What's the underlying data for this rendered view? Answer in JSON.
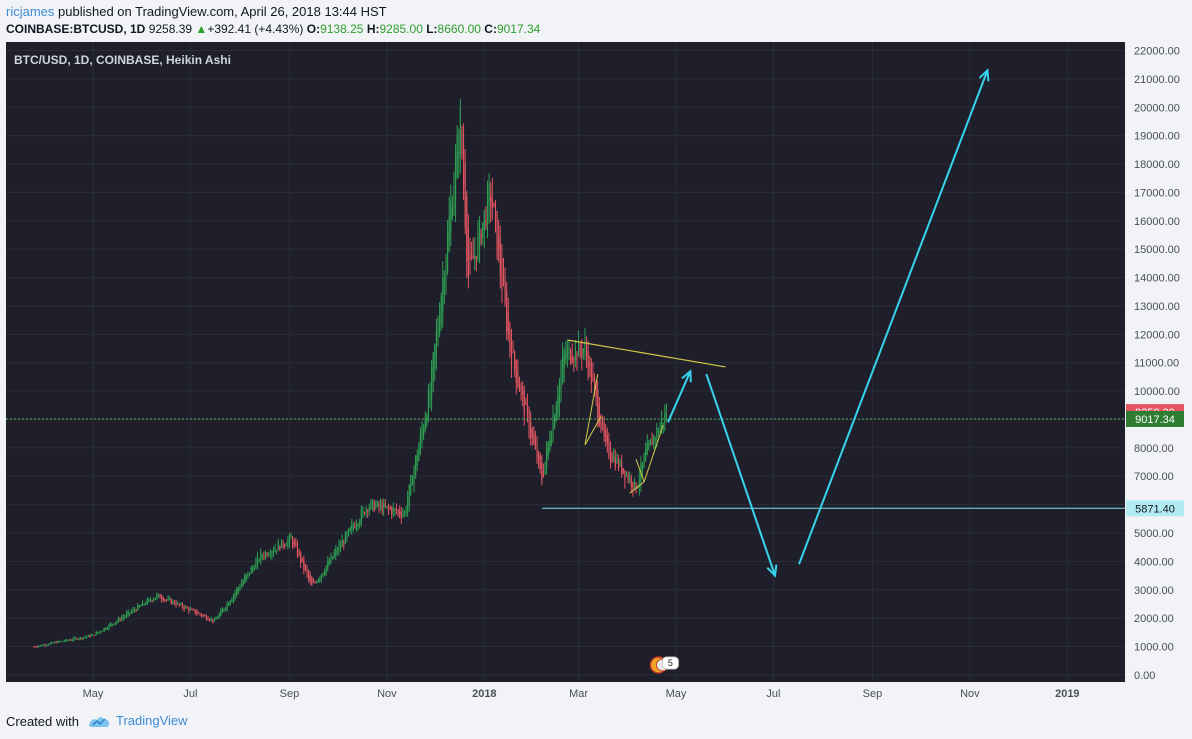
{
  "header": {
    "author": "ricjames",
    "published_text": "published on TradingView.com, April 26, 2018 13:44 HST",
    "symbol": "COINBASE:BTCUSD, 1D",
    "last": "9258.39",
    "change_arrow": "▲",
    "change": "+392.41 (+4.43%)",
    "open_label": "O:",
    "open": "9138.25",
    "high_label": "H:",
    "high": "9285.00",
    "low_label": "L:",
    "low": "8660.00",
    "close_label": "C:",
    "close": "9017.34"
  },
  "chart_data": {
    "type": "candlestick",
    "title": "BTC/USD, 1D, COINBASE, Heikin Ashi",
    "x_ticks": [
      "May",
      "Jul",
      "Sep",
      "Nov",
      "2018",
      "Mar",
      "May",
      "Jul",
      "Sep",
      "Nov",
      "2019"
    ],
    "y_ticks": [
      0,
      1000,
      2000,
      3000,
      4000,
      5000,
      6000,
      7000,
      8000,
      9000,
      10000,
      11000,
      12000,
      13000,
      14000,
      15000,
      16000,
      17000,
      18000,
      19000,
      20000,
      21000,
      22000
    ],
    "y_tick_labels": [
      "0.00",
      "1000.00",
      "2000.00",
      "3000.00",
      "4000.00",
      "5000.00",
      "6000.00",
      "7000.00",
      "8000.00",
      "9000.00",
      "10000.00",
      "11000.00",
      "12000.00",
      "13000.00",
      "14000.00",
      "15000.00",
      "16000.00",
      "17000.00",
      "18000.00",
      "19000.00",
      "20000.00",
      "21000.00",
      "22000.00"
    ],
    "ylim": [
      -250,
      22300
    ],
    "price_key_points": [
      {
        "date": "2017-03-25",
        "price": 1000
      },
      {
        "date": "2017-05-01",
        "price": 1400
      },
      {
        "date": "2017-06-10",
        "price": 2800
      },
      {
        "date": "2017-07-16",
        "price": 1900
      },
      {
        "date": "2017-08-14",
        "price": 4200
      },
      {
        "date": "2017-09-02",
        "price": 4800
      },
      {
        "date": "2017-09-15",
        "price": 3100
      },
      {
        "date": "2017-10-20",
        "price": 6000
      },
      {
        "date": "2017-11-12",
        "price": 5700
      },
      {
        "date": "2017-11-28",
        "price": 10000
      },
      {
        "date": "2017-12-17",
        "price": 19500
      },
      {
        "date": "2017-12-22",
        "price": 14000
      },
      {
        "date": "2018-01-05",
        "price": 17000
      },
      {
        "date": "2018-01-17",
        "price": 11500
      },
      {
        "date": "2018-02-06",
        "price": 6900
      },
      {
        "date": "2018-02-20",
        "price": 11300
      },
      {
        "date": "2018-03-05",
        "price": 11500
      },
      {
        "date": "2018-03-18",
        "price": 8000
      },
      {
        "date": "2018-04-06",
        "price": 6600
      },
      {
        "date": "2018-04-12",
        "price": 7800
      },
      {
        "date": "2018-04-25",
        "price": 9258
      }
    ],
    "price_labels": [
      {
        "value": 9258.39,
        "text": "9258.39",
        "color": "#e35561"
      },
      {
        "value": 9017.34,
        "text": "9017.34",
        "color": "#2e7d32"
      },
      {
        "value": 5871.4,
        "text": "5871.40",
        "color": "#b2ebf2"
      }
    ],
    "annotations": {
      "horizontal_level": {
        "price": 5871.4,
        "start": "2018-02-06",
        "color": "#80deea"
      },
      "dashed_level": {
        "price": 9017.34,
        "color": "#4caf50"
      },
      "triangle_top_line": {
        "from": [
          "2018-02-22",
          11800
        ],
        "to": [
          "2018-06-01",
          10850
        ],
        "color": "#d4c94a"
      },
      "projection_arrows": [
        {
          "from": [
            "2018-04-26",
            8900
          ],
          "to": [
            "2018-05-10",
            10700
          ]
        },
        {
          "from": [
            "2018-05-20",
            10600
          ],
          "to": [
            "2018-07-02",
            3500
          ]
        },
        {
          "from": [
            "2018-07-17",
            3900
          ],
          "to": [
            "2018-11-12",
            21300
          ]
        }
      ],
      "arrow_color": "#37d4ec",
      "event_badge": "5"
    },
    "colors": {
      "up": "#2e9e52",
      "down": "#e35561",
      "background": "#1e1f2b",
      "grid": "#2a2c3a"
    }
  },
  "footer": {
    "created_with": "Created with",
    "brand": "TradingView"
  }
}
